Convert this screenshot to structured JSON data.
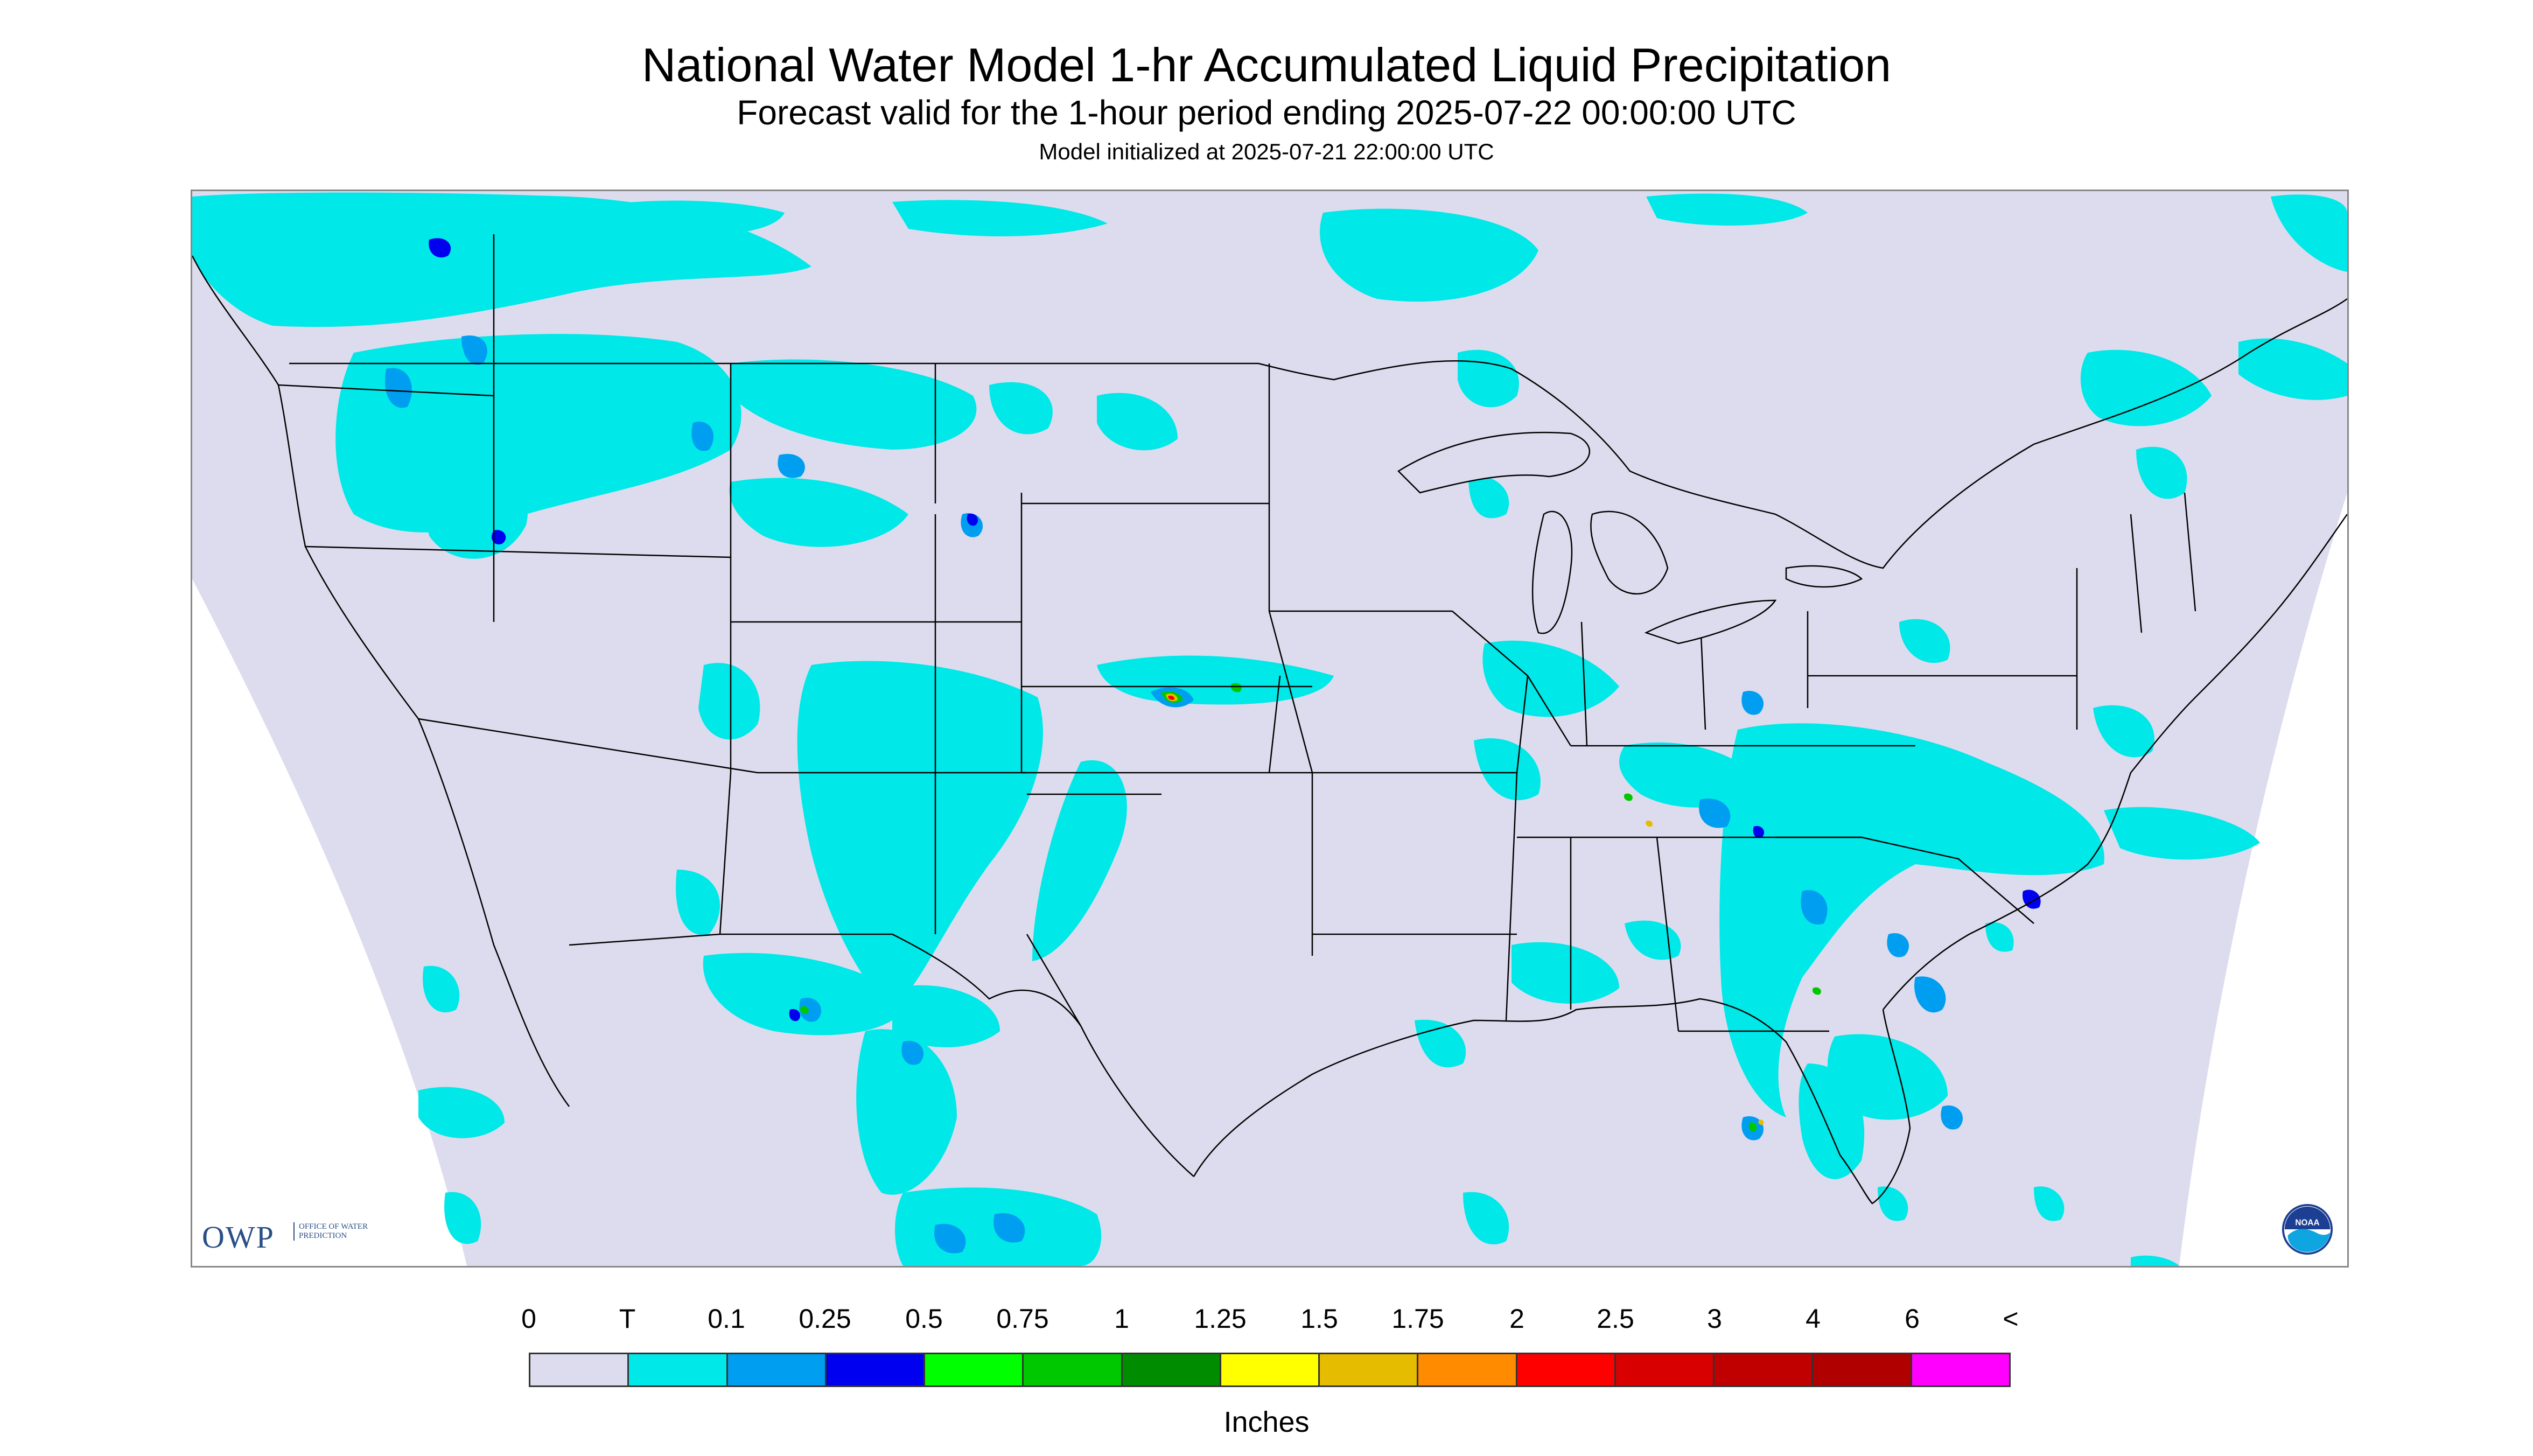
{
  "header": {
    "title": "National Water Model 1-hr Accumulated Liquid Precipitation",
    "subtitle": "Forecast valid for the 1-hour period ending 2025-07-22 00:00:00 UTC",
    "init_note": "Model initialized at 2025-07-21 22:00:00 UTC"
  },
  "logos": {
    "owp_letters": "OWP",
    "owp_sub": "OFFICE OF WATER PREDICTION",
    "noaa_text": "NOAA"
  },
  "colors": {
    "background_domain": "#dcdcee",
    "outside_domain": "#ffffff",
    "borders": "#000000"
  },
  "legend": {
    "labels": [
      "0",
      "T",
      "0.1",
      "0.25",
      "0.5",
      "0.75",
      "1",
      "1.25",
      "1.5",
      "1.75",
      "2",
      "2.5",
      "3",
      "4",
      "6",
      "<"
    ],
    "colors": [
      "#dcdcee",
      "#00e8e8",
      "#009ef0",
      "#0000f0",
      "#00ff00",
      "#00c800",
      "#008c00",
      "#ffff00",
      "#e6bc00",
      "#ff8c00",
      "#ff0000",
      "#d80000",
      "#c00000",
      "#b00000",
      "#ff00ff",
      "#9955c9"
    ],
    "units": "Inches"
  }
}
